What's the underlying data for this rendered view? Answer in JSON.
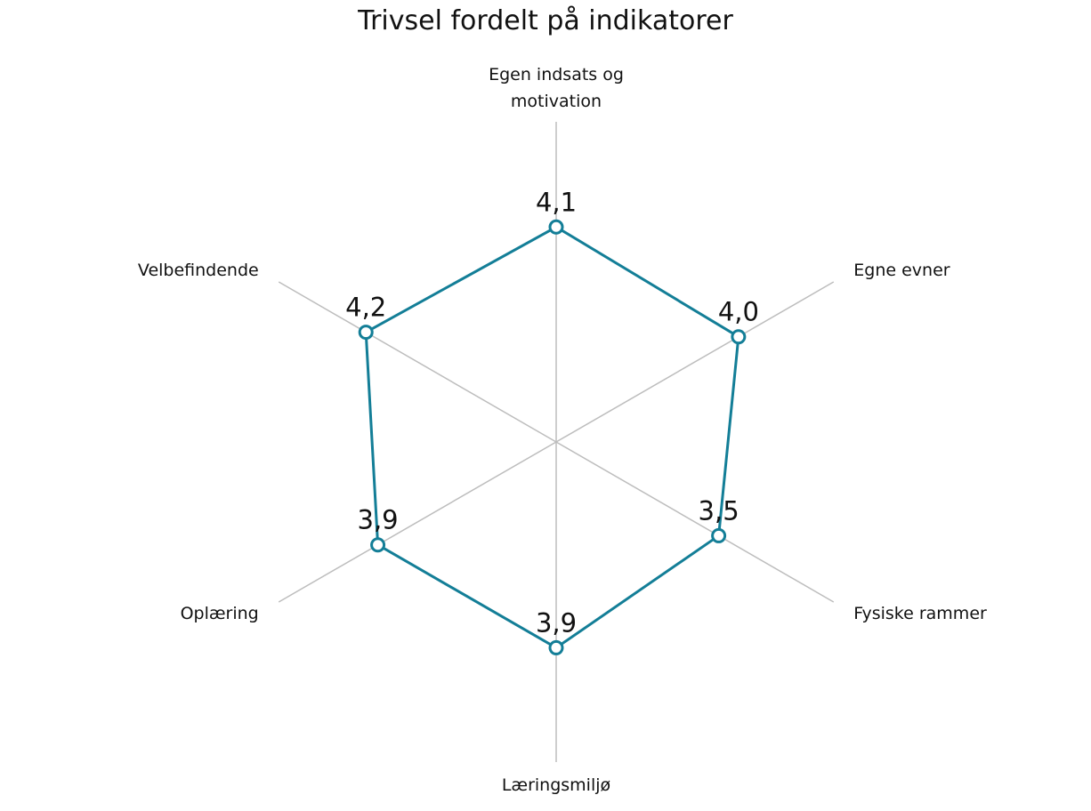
{
  "chart_data": {
    "type": "radar",
    "title": "Trivsel fordelt på indikatorer",
    "categories": [
      "Egen indsats og motivation",
      "Egne evner",
      "Fysiske rammer",
      "Læringsmiljø",
      "Oplæring",
      "Velbefindende"
    ],
    "values": [
      4.1,
      4.0,
      3.5,
      3.9,
      3.9,
      4.2
    ],
    "value_labels": [
      "4,1",
      "4,0",
      "3,5",
      "3,9",
      "3,9",
      "4,2"
    ],
    "color": "#137e97",
    "ylim": [
      -0.6,
      6.4
    ]
  }
}
